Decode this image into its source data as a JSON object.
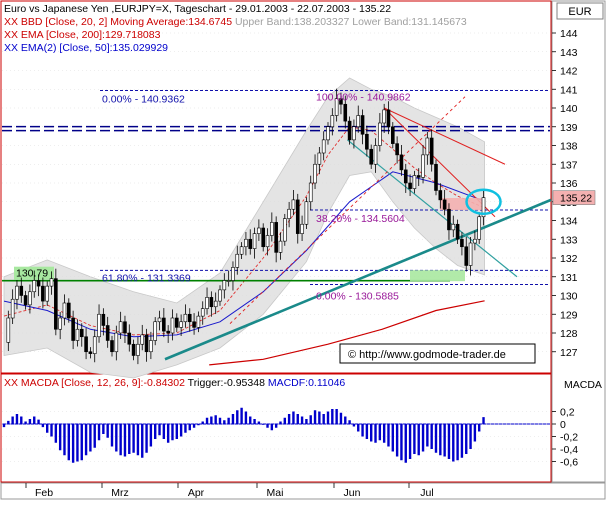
{
  "header": {
    "symbol_label": "EUR",
    "legend": [
      {
        "text": "Euro vs Japanese Yen ,EURJPY=X, Tageschart - 29.01.2003 - 22.07.2003 - 135.22",
        "color": "#000000"
      },
      {
        "text": "XX BBD [Close, 20, 2] Moving Average:134.6745",
        "color": "#cc0000",
        "extra": " Upper Band:138.203327 Lower Band:131.145673",
        "extra_color": "#a0a0a0"
      },
      {
        "text": "XX EMA [Close, 200]:129.718083",
        "color": "#cc0000"
      },
      {
        "text": "XX EMA(2) [Close, 50]:135.029929",
        "color": "#0000cc"
      }
    ]
  },
  "macd_panel": {
    "legend_prefix": "XX MACDA [Close, 12, 26, 9]:-0.84302",
    "legend_trigger": " Trigger:-0.95348",
    "legend_macdf": " MACDF:0.11046",
    "axis_label": "MACDA",
    "ticks": [
      "0,2",
      "0",
      "-0,2",
      "-0,4",
      "-0,6"
    ]
  },
  "copyright": "© http://www.godmode-trader.de",
  "chart_data": {
    "type": "candlestick",
    "title": "Euro vs Japanese Yen ,EURJPY=X, Tageschart - 29.01.2003 - 22.07.2003 - 135.22",
    "price_axis": {
      "ticks": [
        "144",
        "143",
        "142",
        "141",
        "140",
        "139",
        "138",
        "137",
        "136",
        "135",
        "134",
        "133",
        "132",
        "131",
        "130",
        "129",
        "128",
        "127"
      ],
      "ylim": [
        126.3,
        144.8
      ]
    },
    "x_axis": {
      "labels": [
        "Feb",
        "Mrz",
        "Apr",
        "Mai",
        "Jun",
        "Jul"
      ]
    },
    "last_price": "135.22",
    "price_path": [
      [
        0,
        127.5
      ],
      [
        4,
        128.8
      ],
      [
        8,
        129.8
      ],
      [
        12,
        130.5
      ],
      [
        16,
        130.0
      ],
      [
        20,
        129.5
      ],
      [
        24,
        130.2
      ],
      [
        28,
        130.8
      ],
      [
        32,
        130.5
      ],
      [
        36,
        129.7
      ],
      [
        40,
        130.5
      ],
      [
        44,
        130.9
      ],
      [
        48,
        128.2
      ],
      [
        52,
        128.8
      ],
      [
        56,
        129.6
      ],
      [
        60,
        128.8
      ],
      [
        64,
        127.6
      ],
      [
        68,
        128.2
      ],
      [
        72,
        127.8
      ],
      [
        76,
        127.0
      ],
      [
        80,
        126.9
      ],
      [
        84,
        127.8
      ],
      [
        88,
        129.0
      ],
      [
        92,
        128.4
      ],
      [
        96,
        127.6
      ],
      [
        100,
        127.0
      ],
      [
        104,
        128.0
      ],
      [
        108,
        128.6
      ],
      [
        112,
        128.0
      ],
      [
        116,
        127.4
      ],
      [
        120,
        126.8
      ],
      [
        124,
        127.4
      ],
      [
        128,
        127.9
      ],
      [
        132,
        127.0
      ],
      [
        136,
        127.6
      ],
      [
        140,
        128.6
      ],
      [
        144,
        128.8
      ],
      [
        148,
        128.1
      ],
      [
        152,
        128.0
      ],
      [
        156,
        128.8
      ],
      [
        160,
        128.3
      ],
      [
        164,
        128.6
      ],
      [
        168,
        129.0
      ],
      [
        172,
        128.6
      ],
      [
        176,
        128.3
      ],
      [
        180,
        128.9
      ],
      [
        184,
        129.3
      ],
      [
        188,
        129.9
      ],
      [
        192,
        129.4
      ],
      [
        196,
        129.7
      ],
      [
        200,
        130.3
      ],
      [
        204,
        130.8
      ],
      [
        208,
        130.8
      ],
      [
        212,
        131.5
      ],
      [
        216,
        132.2
      ],
      [
        220,
        132.6
      ],
      [
        224,
        133.0
      ],
      [
        228,
        132.5
      ],
      [
        232,
        133.3
      ],
      [
        236,
        133.6
      ],
      [
        240,
        132.6
      ],
      [
        244,
        133.2
      ],
      [
        248,
        133.9
      ],
      [
        252,
        132.3
      ],
      [
        256,
        132.9
      ],
      [
        260,
        134.1
      ],
      [
        264,
        134.6
      ],
      [
        268,
        135.1
      ],
      [
        272,
        133.3
      ],
      [
        276,
        133.8
      ],
      [
        280,
        135.0
      ],
      [
        284,
        136.0
      ],
      [
        288,
        137.0
      ],
      [
        292,
        137.6
      ],
      [
        296,
        138.3
      ],
      [
        300,
        139.0
      ],
      [
        304,
        139.6
      ],
      [
        308,
        140.5
      ],
      [
        312,
        140.2
      ],
      [
        316,
        139.3
      ],
      [
        320,
        138.3
      ],
      [
        324,
        139.0
      ],
      [
        328,
        139.6
      ],
      [
        332,
        138.6
      ],
      [
        336,
        137.8
      ],
      [
        340,
        137.0
      ],
      [
        344,
        138.0
      ],
      [
        348,
        139.2
      ],
      [
        352,
        139.9
      ],
      [
        356,
        139.0
      ],
      [
        360,
        138.1
      ],
      [
        364,
        137.5
      ],
      [
        368,
        136.7
      ],
      [
        372,
        136.0
      ],
      [
        376,
        135.7
      ],
      [
        380,
        136.4
      ],
      [
        384,
        136.3
      ],
      [
        388,
        137.5
      ],
      [
        392,
        138.4
      ],
      [
        396,
        137.0
      ],
      [
        400,
        135.6
      ],
      [
        404,
        135.1
      ],
      [
        408,
        134.6
      ],
      [
        412,
        133.5
      ],
      [
        416,
        133.8
      ],
      [
        420,
        133.0
      ],
      [
        424,
        132.6
      ],
      [
        428,
        131.6
      ],
      [
        432,
        132.8
      ],
      [
        436,
        133.0
      ],
      [
        440,
        134.2
      ],
      [
        444,
        135.22
      ]
    ],
    "ema_200": [
      [
        190,
        126.3
      ],
      [
        240,
        126.6
      ],
      [
        300,
        127.4
      ],
      [
        350,
        128.2
      ],
      [
        400,
        129.2
      ],
      [
        445,
        129.72
      ]
    ],
    "ema_50": [
      [
        0,
        129.7
      ],
      [
        40,
        129.2
      ],
      [
        80,
        128.2
      ],
      [
        120,
        127.8
      ],
      [
        160,
        127.9
      ],
      [
        200,
        128.6
      ],
      [
        240,
        130.2
      ],
      [
        280,
        132.4
      ],
      [
        320,
        135.0
      ],
      [
        360,
        136.6
      ],
      [
        400,
        136.0
      ],
      [
        445,
        135.03
      ]
    ],
    "bollinger_upper": [
      [
        0,
        131.0
      ],
      [
        40,
        131.9
      ],
      [
        80,
        131.0
      ],
      [
        120,
        130.2
      ],
      [
        160,
        129.6
      ],
      [
        200,
        131.2
      ],
      [
        240,
        135.0
      ],
      [
        280,
        138.8
      ],
      [
        300,
        140.6
      ],
      [
        320,
        141.6
      ],
      [
        340,
        141.0
      ],
      [
        360,
        140.6
      ],
      [
        380,
        140.0
      ],
      [
        400,
        139.5
      ],
      [
        420,
        139.0
      ],
      [
        445,
        138.2
      ]
    ],
    "bollinger_lower": [
      [
        0,
        126.8
      ],
      [
        40,
        127.2
      ],
      [
        80,
        125.9
      ],
      [
        120,
        125.6
      ],
      [
        160,
        126.3
      ],
      [
        200,
        127.2
      ],
      [
        240,
        129.0
      ],
      [
        280,
        131.8
      ],
      [
        300,
        134.4
      ],
      [
        320,
        136.4
      ],
      [
        340,
        136.6
      ],
      [
        360,
        135.0
      ],
      [
        380,
        133.6
      ],
      [
        400,
        132.5
      ],
      [
        420,
        131.6
      ],
      [
        445,
        131.1
      ]
    ],
    "bollinger_mid": [
      [
        0,
        128.9
      ],
      [
        40,
        129.5
      ],
      [
        80,
        128.4
      ],
      [
        120,
        127.9
      ],
      [
        160,
        128.0
      ],
      [
        200,
        129.2
      ],
      [
        240,
        132.0
      ],
      [
        280,
        135.3
      ],
      [
        300,
        137.5
      ],
      [
        320,
        139.0
      ],
      [
        340,
        138.8
      ],
      [
        360,
        137.8
      ],
      [
        380,
        136.8
      ],
      [
        400,
        136.0
      ],
      [
        420,
        135.3
      ],
      [
        445,
        134.67
      ]
    ],
    "fibonacci": [
      {
        "label": "0.00% - 140.9362",
        "value": 140.9362
      },
      {
        "label": "100.00% - 140.9862",
        "value": 140.9862
      },
      {
        "label": "38.20% - 134.5604",
        "value": 134.5604
      },
      {
        "label": "61.80% - 131.3369",
        "value": 131.3369
      },
      {
        "label": "0.00% - 130.5885",
        "value": 130.5885
      }
    ],
    "support_line_label": "130.79",
    "support_level": 130.79,
    "resistance_level": 138.9,
    "macd_hist": [
      [
        0,
        -0.05
      ],
      [
        4,
        0.05
      ],
      [
        8,
        0.12
      ],
      [
        12,
        0.16
      ],
      [
        16,
        0.12
      ],
      [
        20,
        0.04
      ],
      [
        24,
        0.08
      ],
      [
        28,
        0.12
      ],
      [
        32,
        0.07
      ],
      [
        36,
        -0.05
      ],
      [
        40,
        -0.14
      ],
      [
        44,
        -0.2
      ],
      [
        48,
        -0.3
      ],
      [
        52,
        -0.42
      ],
      [
        56,
        -0.5
      ],
      [
        60,
        -0.58
      ],
      [
        64,
        -0.62
      ],
      [
        68,
        -0.6
      ],
      [
        72,
        -0.58
      ],
      [
        76,
        -0.5
      ],
      [
        80,
        -0.44
      ],
      [
        84,
        -0.38
      ],
      [
        88,
        -0.26
      ],
      [
        92,
        -0.16
      ],
      [
        96,
        -0.22
      ],
      [
        100,
        -0.36
      ],
      [
        104,
        -0.44
      ],
      [
        108,
        -0.5
      ],
      [
        112,
        -0.52
      ],
      [
        116,
        -0.48
      ],
      [
        120,
        -0.46
      ],
      [
        124,
        -0.5
      ],
      [
        128,
        -0.54
      ],
      [
        132,
        -0.46
      ],
      [
        136,
        -0.36
      ],
      [
        140,
        -0.24
      ],
      [
        144,
        -0.18
      ],
      [
        148,
        -0.24
      ],
      [
        152,
        -0.3
      ],
      [
        156,
        -0.26
      ],
      [
        160,
        -0.24
      ],
      [
        164,
        -0.2
      ],
      [
        168,
        -0.14
      ],
      [
        172,
        -0.1
      ],
      [
        176,
        -0.06
      ],
      [
        180,
        -0.02
      ],
      [
        184,
        0.04
      ],
      [
        188,
        0.1
      ],
      [
        192,
        0.12
      ],
      [
        196,
        0.14
      ],
      [
        200,
        0.1
      ],
      [
        204,
        0.06
      ],
      [
        208,
        0.1
      ],
      [
        212,
        0.16
      ],
      [
        216,
        0.22
      ],
      [
        220,
        0.26
      ],
      [
        224,
        0.2
      ],
      [
        228,
        0.12
      ],
      [
        232,
        0.08
      ],
      [
        236,
        0.04
      ],
      [
        240,
        0.0
      ],
      [
        244,
        -0.06
      ],
      [
        248,
        -0.1
      ],
      [
        252,
        -0.06
      ],
      [
        256,
        0.04
      ],
      [
        260,
        0.1
      ],
      [
        264,
        0.16
      ],
      [
        268,
        0.2
      ],
      [
        272,
        0.16
      ],
      [
        276,
        0.12
      ],
      [
        280,
        0.08
      ],
      [
        284,
        0.14
      ],
      [
        288,
        0.22
      ],
      [
        292,
        0.2
      ],
      [
        296,
        0.16
      ],
      [
        300,
        0.2
      ],
      [
        304,
        0.24
      ],
      [
        308,
        0.24
      ],
      [
        312,
        0.18
      ],
      [
        316,
        0.12
      ],
      [
        320,
        0.06
      ],
      [
        324,
        -0.04
      ],
      [
        328,
        -0.12
      ],
      [
        332,
        -0.2
      ],
      [
        336,
        -0.24
      ],
      [
        340,
        -0.28
      ],
      [
        344,
        -0.3
      ],
      [
        348,
        -0.26
      ],
      [
        352,
        -0.3
      ],
      [
        356,
        -0.36
      ],
      [
        360,
        -0.44
      ],
      [
        364,
        -0.52
      ],
      [
        368,
        -0.58
      ],
      [
        372,
        -0.62
      ],
      [
        376,
        -0.56
      ],
      [
        380,
        -0.48
      ],
      [
        384,
        -0.5
      ],
      [
        388,
        -0.44
      ],
      [
        392,
        -0.36
      ],
      [
        396,
        -0.4
      ],
      [
        400,
        -0.46
      ],
      [
        404,
        -0.5
      ],
      [
        408,
        -0.52
      ],
      [
        412,
        -0.56
      ],
      [
        416,
        -0.6
      ],
      [
        420,
        -0.58
      ],
      [
        424,
        -0.54
      ],
      [
        428,
        -0.48
      ],
      [
        432,
        -0.4
      ],
      [
        436,
        -0.28
      ],
      [
        440,
        -0.12
      ],
      [
        444,
        0.11
      ]
    ]
  }
}
